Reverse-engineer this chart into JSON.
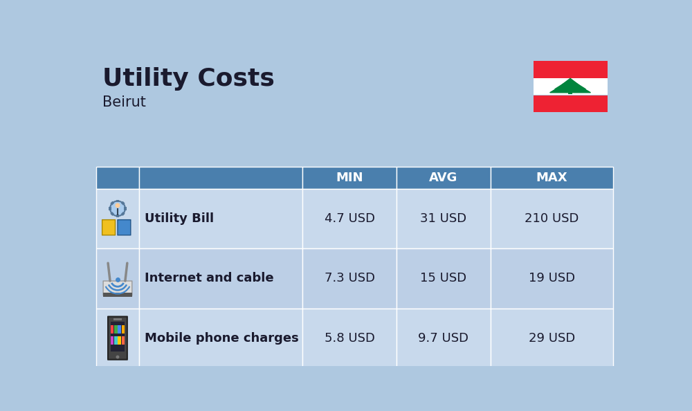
{
  "title": "Utility Costs",
  "subtitle": "Beirut",
  "background_color": "#aec8e0",
  "header_bg_color": "#4a7fad",
  "header_text_color": "#ffffff",
  "row_bg_color_1": "#c8d9ec",
  "row_bg_color_2": "#bccfe6",
  "col_headers": [
    "",
    "",
    "MIN",
    "AVG",
    "MAX"
  ],
  "rows": [
    {
      "label": "Utility Bill",
      "min": "4.7 USD",
      "avg": "31 USD",
      "max": "210 USD"
    },
    {
      "label": "Internet and cable",
      "min": "7.3 USD",
      "avg": "15 USD",
      "max": "19 USD"
    },
    {
      "label": "Mobile phone charges",
      "min": "5.8 USD",
      "avg": "9.7 USD",
      "max": "29 USD"
    }
  ],
  "title_fontsize": 26,
  "subtitle_fontsize": 15,
  "header_fontsize": 13,
  "cell_fontsize": 13,
  "label_fontsize": 13,
  "flag_red": "#ee2233",
  "flag_white": "#ffffff",
  "flag_green": "#00843d"
}
